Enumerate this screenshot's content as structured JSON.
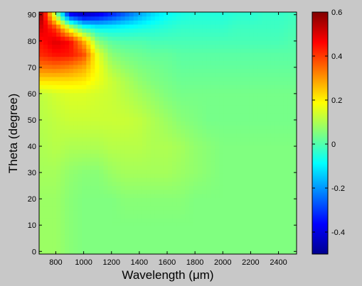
{
  "chart_data": {
    "type": "heatmap",
    "title": "",
    "xlabel": "Wavelength (μm)",
    "ylabel": "Theta (degree)",
    "xlim": [
      680,
      2530
    ],
    "ylim": [
      -1,
      91
    ],
    "xticks": [
      800,
      1000,
      1200,
      1400,
      1600,
      1800,
      2000,
      2200,
      2400
    ],
    "yticks": [
      0,
      10,
      20,
      30,
      40,
      50,
      60,
      70,
      80,
      90
    ],
    "colorbar": {
      "range": [
        -0.5,
        0.6
      ],
      "ticks": [
        -0.4,
        -0.2,
        0,
        0.2,
        0.4,
        0.6
      ],
      "tick_labels": [
        "-0.4",
        "-0.2",
        "0",
        "0.2",
        "0.4",
        "0.6"
      ],
      "colormap": "jet"
    },
    "x": [
      700,
      800,
      900,
      1000,
      1100,
      1200,
      1300,
      1400,
      1500,
      1600,
      1700,
      1800,
      1900,
      2000,
      2100,
      2200,
      2300,
      2400,
      2500
    ],
    "y": [
      0,
      10,
      20,
      30,
      40,
      50,
      60,
      65,
      70,
      75,
      80,
      85,
      90
    ],
    "z": [
      [
        0.08,
        0.08,
        0.06,
        0.05,
        0.05,
        0.05,
        0.05,
        0.05,
        0.05,
        0.05,
        0.05,
        0.05,
        0.05,
        0.05,
        0.05,
        0.05,
        0.05,
        0.05,
        0.05
      ],
      [
        0.08,
        0.08,
        0.06,
        0.05,
        0.05,
        0.05,
        0.05,
        0.05,
        0.05,
        0.05,
        0.05,
        0.05,
        0.05,
        0.05,
        0.05,
        0.05,
        0.05,
        0.05,
        0.05
      ],
      [
        0.08,
        0.08,
        0.06,
        0.05,
        0.05,
        0.05,
        0.06,
        0.06,
        0.06,
        0.06,
        0.06,
        0.05,
        0.05,
        0.05,
        0.05,
        0.05,
        0.05,
        0.05,
        0.05
      ],
      [
        0.09,
        0.09,
        0.07,
        0.06,
        0.06,
        0.08,
        0.09,
        0.09,
        0.09,
        0.09,
        0.08,
        0.07,
        0.06,
        0.05,
        0.05,
        0.05,
        0.05,
        0.05,
        0.05
      ],
      [
        0.1,
        0.11,
        0.1,
        0.1,
        0.1,
        0.11,
        0.11,
        0.11,
        0.1,
        0.1,
        0.09,
        0.07,
        0.06,
        0.05,
        0.05,
        0.05,
        0.05,
        0.05,
        0.05
      ],
      [
        0.11,
        0.12,
        0.13,
        0.13,
        0.13,
        0.13,
        0.13,
        0.12,
        0.1,
        0.08,
        0.06,
        0.05,
        0.04,
        0.04,
        0.04,
        0.04,
        0.04,
        0.04,
        0.04
      ],
      [
        0.12,
        0.14,
        0.15,
        0.15,
        0.14,
        0.13,
        0.11,
        0.09,
        0.07,
        0.05,
        0.04,
        0.04,
        0.04,
        0.04,
        0.04,
        0.04,
        0.04,
        0.04,
        0.04
      ],
      [
        0.22,
        0.22,
        0.22,
        0.21,
        0.17,
        0.13,
        0.1,
        0.07,
        0.05,
        0.04,
        0.03,
        0.03,
        0.03,
        0.03,
        0.03,
        0.03,
        0.03,
        0.03,
        0.03
      ],
      [
        0.33,
        0.34,
        0.32,
        0.28,
        0.18,
        0.1,
        0.07,
        0.05,
        0.04,
        0.03,
        0.02,
        0.02,
        0.02,
        0.02,
        0.02,
        0.02,
        0.02,
        0.02,
        0.02
      ],
      [
        0.42,
        0.45,
        0.44,
        0.38,
        0.16,
        0.06,
        0.04,
        0.03,
        0.02,
        0.02,
        0.01,
        0.01,
        0.01,
        0.01,
        0.01,
        0.01,
        0.01,
        0.01,
        0.01
      ],
      [
        0.45,
        0.5,
        0.46,
        0.28,
        0.06,
        0.01,
        0.0,
        0.0,
        -0.01,
        -0.01,
        -0.01,
        -0.01,
        -0.01,
        -0.01,
        -0.01,
        -0.01,
        -0.01,
        -0.01,
        0.0
      ],
      [
        0.5,
        0.4,
        0.15,
        -0.03,
        -0.08,
        -0.08,
        -0.07,
        -0.06,
        -0.05,
        -0.04,
        -0.03,
        -0.03,
        -0.03,
        -0.03,
        -0.02,
        -0.02,
        -0.02,
        -0.02,
        -0.01
      ],
      [
        0.55,
        0.1,
        -0.35,
        -0.42,
        -0.38,
        -0.32,
        -0.25,
        -0.18,
        -0.12,
        -0.08,
        -0.06,
        -0.05,
        -0.05,
        -0.05,
        -0.04,
        -0.04,
        -0.03,
        -0.03,
        -0.02
      ]
    ]
  }
}
